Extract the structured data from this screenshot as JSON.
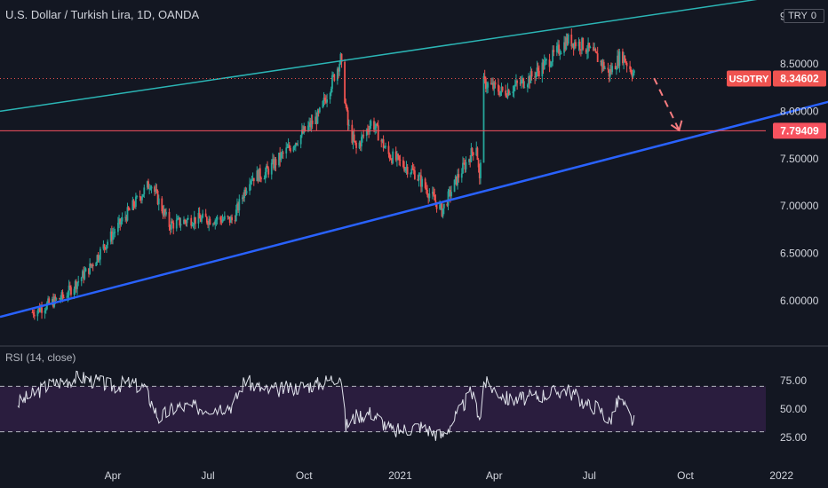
{
  "header": {
    "title": "U.S. Dollar / Turkish Lira, 1D, OANDA",
    "currency": "TRY",
    "currency_suffix": "0"
  },
  "rsi": {
    "title": "RSI (14, close)"
  },
  "colors": {
    "background": "#131722",
    "up": "#26a69a",
    "down": "#ef5350",
    "upper_trend": "#2bb5b5",
    "lower_trend": "#2962ff",
    "support": "#f7525f",
    "rsi_band": "#2a1d3e",
    "rsi_line": "#e0e3eb",
    "axis_text": "#d1d4dc"
  },
  "chart_data": [
    {
      "type": "candlestick",
      "symbol": "USDTRY",
      "xlabel": "",
      "ylabel": "",
      "x_ticks": [
        "Apr",
        "Jul",
        "Oct",
        "2021",
        "Apr",
        "Jul",
        "Oct",
        "2022"
      ],
      "y_ticks": [
        "6.00000",
        "6.50000",
        "7.00000",
        "7.50000",
        "8.00000",
        "8.50000",
        "9"
      ],
      "ylim": [
        5.55,
        9.15
      ],
      "grid": false,
      "last_price_label": "8.34602",
      "symbol_label": "USDTRY",
      "horizontal_level_label": "7.79409",
      "horizontal_level": 7.79409,
      "close_path": [
        [
          "2020-01-15",
          5.88
        ],
        [
          "2020-02-15",
          6.05
        ],
        [
          "2020-03-10",
          6.35
        ],
        [
          "2020-03-25",
          6.6
        ],
        [
          "2020-04-20",
          7.0
        ],
        [
          "2020-05-07",
          7.25
        ],
        [
          "2020-05-25",
          6.8
        ],
        [
          "2020-06-15",
          6.86
        ],
        [
          "2020-07-15",
          6.86
        ],
        [
          "2020-07-25",
          6.85
        ],
        [
          "2020-08-10",
          7.3
        ],
        [
          "2020-08-25",
          7.35
        ],
        [
          "2020-09-20",
          7.65
        ],
        [
          "2020-10-15",
          7.95
        ],
        [
          "2020-11-05",
          8.55
        ],
        [
          "2020-11-12",
          7.85
        ],
        [
          "2020-11-20",
          7.6
        ],
        [
          "2020-12-05",
          7.9
        ],
        [
          "2020-12-20",
          7.55
        ],
        [
          "2021-01-15",
          7.35
        ],
        [
          "2021-02-10",
          6.95
        ],
        [
          "2021-02-25",
          7.3
        ],
        [
          "2021-03-15",
          7.65
        ],
        [
          "2021-03-18",
          7.25
        ],
        [
          "2021-03-22",
          8.3
        ],
        [
          "2021-04-10",
          8.2
        ],
        [
          "2021-05-05",
          8.35
        ],
        [
          "2021-05-25",
          8.55
        ],
        [
          "2021-06-10",
          8.75
        ],
        [
          "2021-06-25",
          8.7
        ],
        [
          "2021-07-10",
          8.55
        ],
        [
          "2021-07-20",
          8.4
        ],
        [
          "2021-08-01",
          8.6
        ],
        [
          "2021-08-15",
          8.35
        ]
      ],
      "annotations": {
        "upper_channel": [
          [
            "2019-12-15",
            8.0
          ],
          [
            "2022-01-20",
            9.25
          ]
        ],
        "lower_channel": [
          [
            "2019-12-15",
            5.83
          ],
          [
            "2022-02-15",
            8.1
          ]
        ],
        "projection_arrow": [
          [
            "2021-09-01",
            8.35
          ],
          [
            "2021-09-25",
            7.8
          ]
        ]
      }
    },
    {
      "type": "line",
      "name": "RSI (14, close)",
      "y_ticks": [
        "25.00",
        "50.00",
        "75.00"
      ],
      "ylim": [
        18,
        98
      ],
      "bands": [
        30,
        70
      ],
      "points": [
        [
          "2020-01-01",
          55
        ],
        [
          "2020-02-01",
          72
        ],
        [
          "2020-03-01",
          78
        ],
        [
          "2020-04-01",
          70
        ],
        [
          "2020-04-15",
          73
        ],
        [
          "2020-05-01",
          69
        ],
        [
          "2020-05-15",
          42
        ],
        [
          "2020-06-01",
          52
        ],
        [
          "2020-07-01",
          51
        ],
        [
          "2020-07-25",
          53
        ],
        [
          "2020-08-05",
          75
        ],
        [
          "2020-08-25",
          66
        ],
        [
          "2020-09-15",
          68
        ],
        [
          "2020-10-15",
          72
        ],
        [
          "2020-11-05",
          80
        ],
        [
          "2020-11-10",
          35
        ],
        [
          "2020-11-20",
          44
        ],
        [
          "2020-12-05",
          47
        ],
        [
          "2020-12-25",
          30
        ],
        [
          "2021-01-20",
          35
        ],
        [
          "2021-02-10",
          26
        ],
        [
          "2021-02-25",
          45
        ],
        [
          "2021-03-10",
          65
        ],
        [
          "2021-03-19",
          42
        ],
        [
          "2021-03-22",
          74
        ],
        [
          "2021-04-15",
          58
        ],
        [
          "2021-05-05",
          60
        ],
        [
          "2021-05-25",
          64
        ],
        [
          "2021-06-10",
          67
        ],
        [
          "2021-06-30",
          53
        ],
        [
          "2021-07-10",
          52
        ],
        [
          "2021-07-20",
          38
        ],
        [
          "2021-07-30",
          60
        ],
        [
          "2021-08-10",
          41
        ],
        [
          "2021-08-15",
          37
        ]
      ]
    }
  ]
}
